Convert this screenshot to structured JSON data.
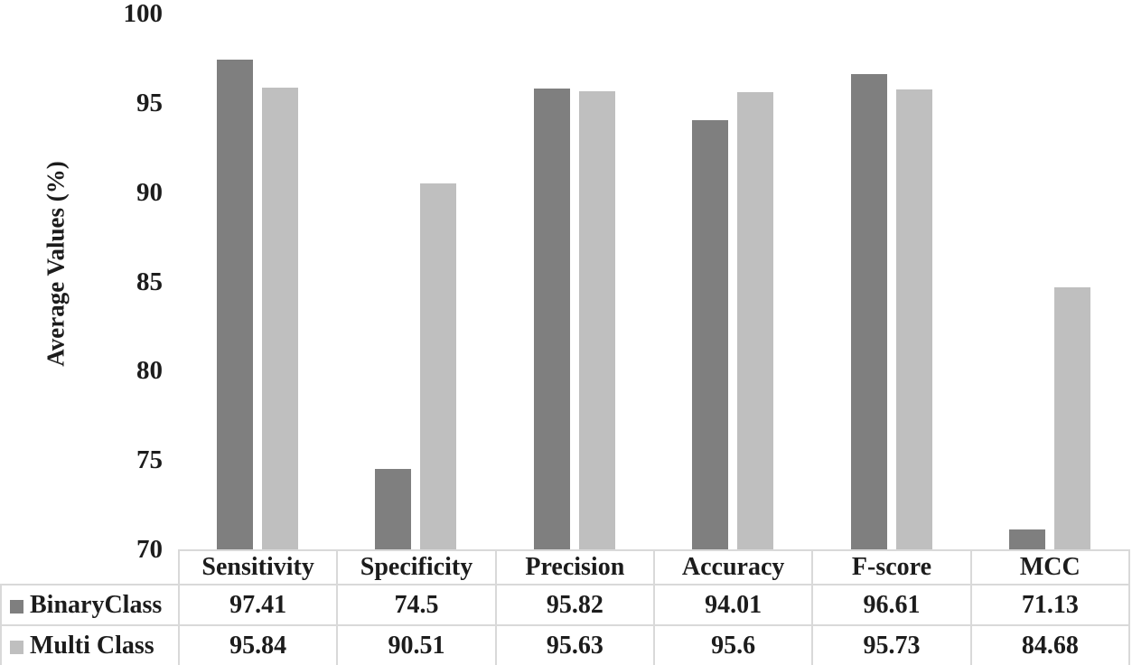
{
  "chart_data": {
    "type": "bar",
    "title": "",
    "xlabel": "",
    "ylabel": "Average Values (%)",
    "categories": [
      "Sensitivity",
      "Specificity",
      "Precision",
      "Accuracy",
      "F-score",
      "MCC"
    ],
    "series": [
      {
        "name": "BinaryClass",
        "color": "#7f7f7f",
        "values": [
          97.41,
          74.5,
          95.82,
          94.01,
          96.61,
          71.13
        ]
      },
      {
        "name": "Multi Class",
        "color": "#bfbfbf",
        "values": [
          95.84,
          90.51,
          95.63,
          95.6,
          95.73,
          84.68
        ]
      }
    ],
    "ylim": [
      70,
      100
    ],
    "yticks": [
      70,
      75,
      80,
      85,
      90,
      95,
      100
    ],
    "grid": false,
    "legend_position": "table-rows",
    "table_border_color": "#d9d9d9",
    "text_color": "#1c1c1c"
  }
}
